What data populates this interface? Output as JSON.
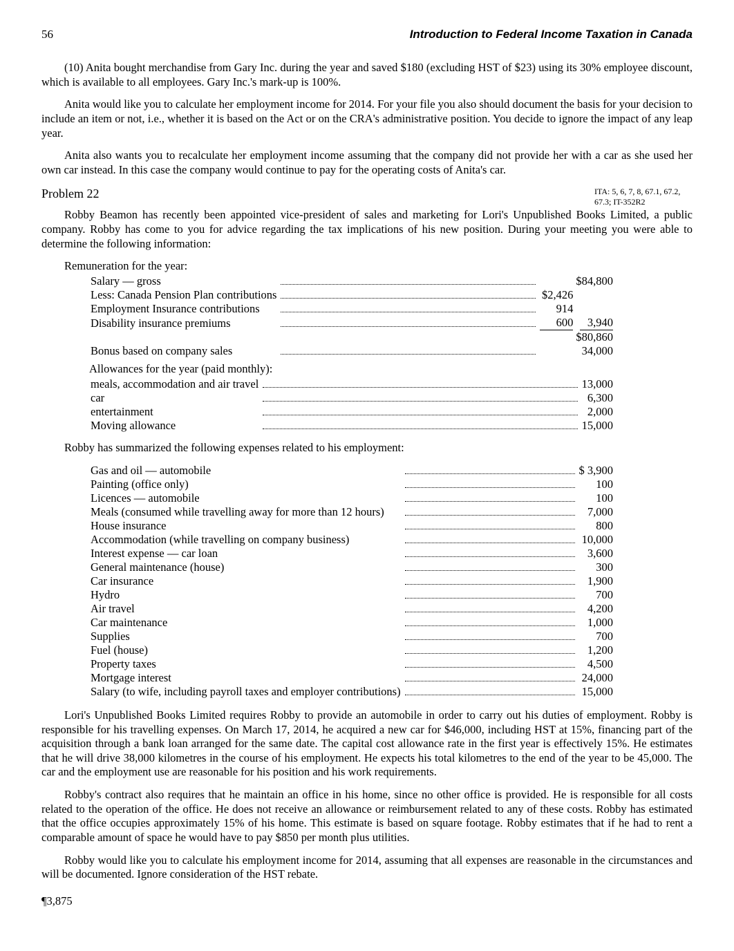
{
  "header": {
    "page_number": "56",
    "book_title": "Introduction to Federal Income Taxation in Canada"
  },
  "p10": "(10) Anita bought merchandise from Gary Inc. during the year and saved $180 (excluding HST of $23) using its 30% employee discount, which is available to all employees. Gary Inc.'s mark-up is 100%.",
  "p_anita1": "Anita would like you to calculate her employment income for 2014. For your file you also should document the basis for your decision to include an item or not, i.e., whether it is based on the Act or on the CRA's administrative position. You decide to ignore the impact of any leap year.",
  "p_anita2": "Anita also wants you to recalculate her employment income assuming that the company did not provide her with a car as she used her own car instead. In this case the company would continue to pay for the operating costs of Anita's car.",
  "problem22": {
    "heading": "Problem 22",
    "margin_note": "ITA: 5, 6, 7, 8, 67.1, 67.2, 67.3; IT-352R2"
  },
  "p_robby_intro": "Robby Beamon has recently been appointed vice-president of sales and marketing for Lori's Unpublished Books Limited, a public company. Robby has come to you for advice regarding the tax implications of his new position. During your meeting you were able to determine the following information:",
  "remun_label": "Remuneration for the year:",
  "remun": {
    "salary_label": "Salary — gross",
    "salary_amount": "$84,800",
    "less_cpp_label": "Less: Canada Pension Plan contributions",
    "less_cpp_amt": "$2,426",
    "ei_label": "Employment Insurance contributions",
    "ei_amt": "914",
    "disab_label": "Disability insurance premiums",
    "disab_amt": "600",
    "deduct_total": "3,940",
    "net_salary": "$80,860",
    "bonus_label": "Bonus based on company sales",
    "bonus_amt": "34,000",
    "allow_label": "Allowances for the year (paid monthly):",
    "meals_label": "meals, accommodation and air travel",
    "meals_amt": "13,000",
    "car_label": "car",
    "car_amt": "6,300",
    "ent_label": "entertainment",
    "ent_amt": "2,000",
    "moving_label": "Moving allowance",
    "moving_amt": "15,000"
  },
  "exp_intro": "Robby has summarized the following expenses related to his employment:",
  "exp": [
    {
      "label": "Gas and oil — automobile",
      "amt": "$ 3,900"
    },
    {
      "label": "Painting (office only)",
      "amt": "100"
    },
    {
      "label": "Licences — automobile",
      "amt": "100"
    },
    {
      "label": "Meals (consumed while travelling away for more than 12 hours)",
      "amt": "7,000"
    },
    {
      "label": "House insurance",
      "amt": "800"
    },
    {
      "label": "Accommodation (while travelling on company business)",
      "amt": "10,000"
    },
    {
      "label": "Interest expense — car loan",
      "amt": "3,600"
    },
    {
      "label": "General maintenance (house)",
      "amt": "300"
    },
    {
      "label": "Car insurance",
      "amt": "1,900"
    },
    {
      "label": "Hydro",
      "amt": "700"
    },
    {
      "label": "Air travel",
      "amt": "4,200"
    },
    {
      "label": "Car maintenance",
      "amt": "1,000"
    },
    {
      "label": "Supplies",
      "amt": "700"
    },
    {
      "label": "Fuel (house)",
      "amt": "1,200"
    },
    {
      "label": "Property taxes",
      "amt": "4,500"
    },
    {
      "label": "Mortgage interest",
      "amt": "24,000"
    },
    {
      "label": "Salary (to wife, including payroll taxes and employer contributions)",
      "amt": "15,000"
    }
  ],
  "p_lori": "Lori's Unpublished Books Limited requires Robby to provide an automobile in order to carry out his duties of employment. Robby is responsible for his travelling expenses. On March 17, 2014, he acquired a new car for $46,000, including HST at 15%, financing part of the acquisition through a bank loan arranged for the same date. The capital cost allowance rate in the first year is effectively 15%. He estimates that he will drive 38,000 kilometres in the course of his employment. He expects his total kilometres to the end of the year to be 45,000. The car and the employment use are reasonable for his position and his work requirements.",
  "p_contract": "Robby's contract also requires that he maintain an office in his home, since no other office is provided. He is responsible for all costs related to the operation of the office. He does not receive an allowance or reimbursement related to any of these costs. Robby has estimated that the office occupies approximately 15% of his home. This estimate is based on square footage. Robby estimates that if he had to rent a comparable amount of space he would have to pay $850 per month plus utilities.",
  "p_calc": "Robby would like you to calculate his employment income for 2014, assuming that all expenses are reasonable in the circumstances and will be documented. Ignore consideration of the HST rebate.",
  "para_ref": "¶3,875"
}
